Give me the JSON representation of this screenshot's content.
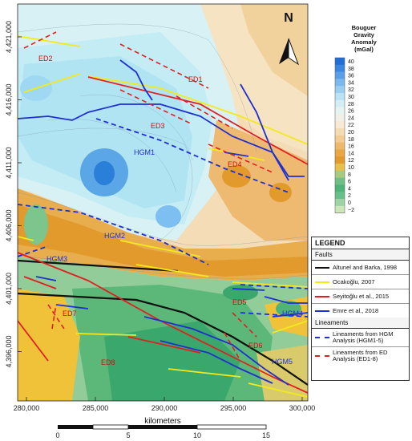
{
  "colorbar": {
    "title_lines": [
      "Bouguer",
      "Gravity",
      "Anomaly",
      "(mGal)"
    ],
    "labels": [
      "40",
      "38",
      "36",
      "34",
      "32",
      "30",
      "28",
      "26",
      "24",
      "22",
      "20",
      "18",
      "16",
      "14",
      "12",
      "10",
      "8",
      "6",
      "4",
      "2",
      "0",
      "−2"
    ],
    "colors": [
      "#1f6fd6",
      "#3a86e0",
      "#5aa0e8",
      "#7bb8ee",
      "#9bcff2",
      "#b9e2f4",
      "#d4eef4",
      "#e6f4f1",
      "#f2f0e6",
      "#f7e9d3",
      "#f6dcb5",
      "#f3cc93",
      "#efb96c",
      "#eaa642",
      "#e39a2c",
      "#e6c04a",
      "#a8c97e",
      "#6fbf86",
      "#4fb37a",
      "#66c08c",
      "#9dd3a5",
      "#cde6b8"
    ]
  },
  "north": {
    "letter": "N"
  },
  "y_ticks": [
    "4,421,000",
    "4,416,000",
    "4,411,000",
    "4,406,000",
    "4,401,000",
    "4,396,000"
  ],
  "x_ticks": [
    "280,000",
    "285,000",
    "290,000",
    "295,000",
    "300,000"
  ],
  "x_axis_title": "kilometers",
  "scale_ticks": [
    "0",
    "5",
    "10",
    "15"
  ],
  "fault_labels": {
    "ED1": "ED1",
    "ED2": "ED2",
    "ED3": "ED3",
    "ED4": "ED4",
    "ED5": "ED5",
    "ED6": "ED6",
    "ED7": "ED7",
    "ED8": "ED8",
    "HGM1": "HGM1",
    "HGM2": "HGM2",
    "HGM3": "HGM3",
    "HGM4": "HGM4",
    "HGM5": "HGM5"
  },
  "legend": {
    "title": "LEGEND",
    "faults_header": "Faults",
    "lineaments_header": "Lineaments",
    "items": [
      {
        "label": "Altunel and Barka, 1998",
        "color": "#111111",
        "style": "solid"
      },
      {
        "label": "Ocakoğlu, 2007",
        "color": "#f2ea1a",
        "style": "solid"
      },
      {
        "label": "Seyitoğlu et al., 2015",
        "color": "#e02020",
        "style": "solid"
      },
      {
        "label": "Emre et al., 2018",
        "color": "#1f2fd0",
        "style": "solid"
      }
    ],
    "lineaments": [
      {
        "label": "Lineaments from HGM Analysis (HGM1-5)",
        "color": "#1f2fd0",
        "style": "dashed"
      },
      {
        "label": "Lineaments from ED Analysis (ED1-8)",
        "color": "#e02020",
        "style": "dashed"
      }
    ]
  }
}
